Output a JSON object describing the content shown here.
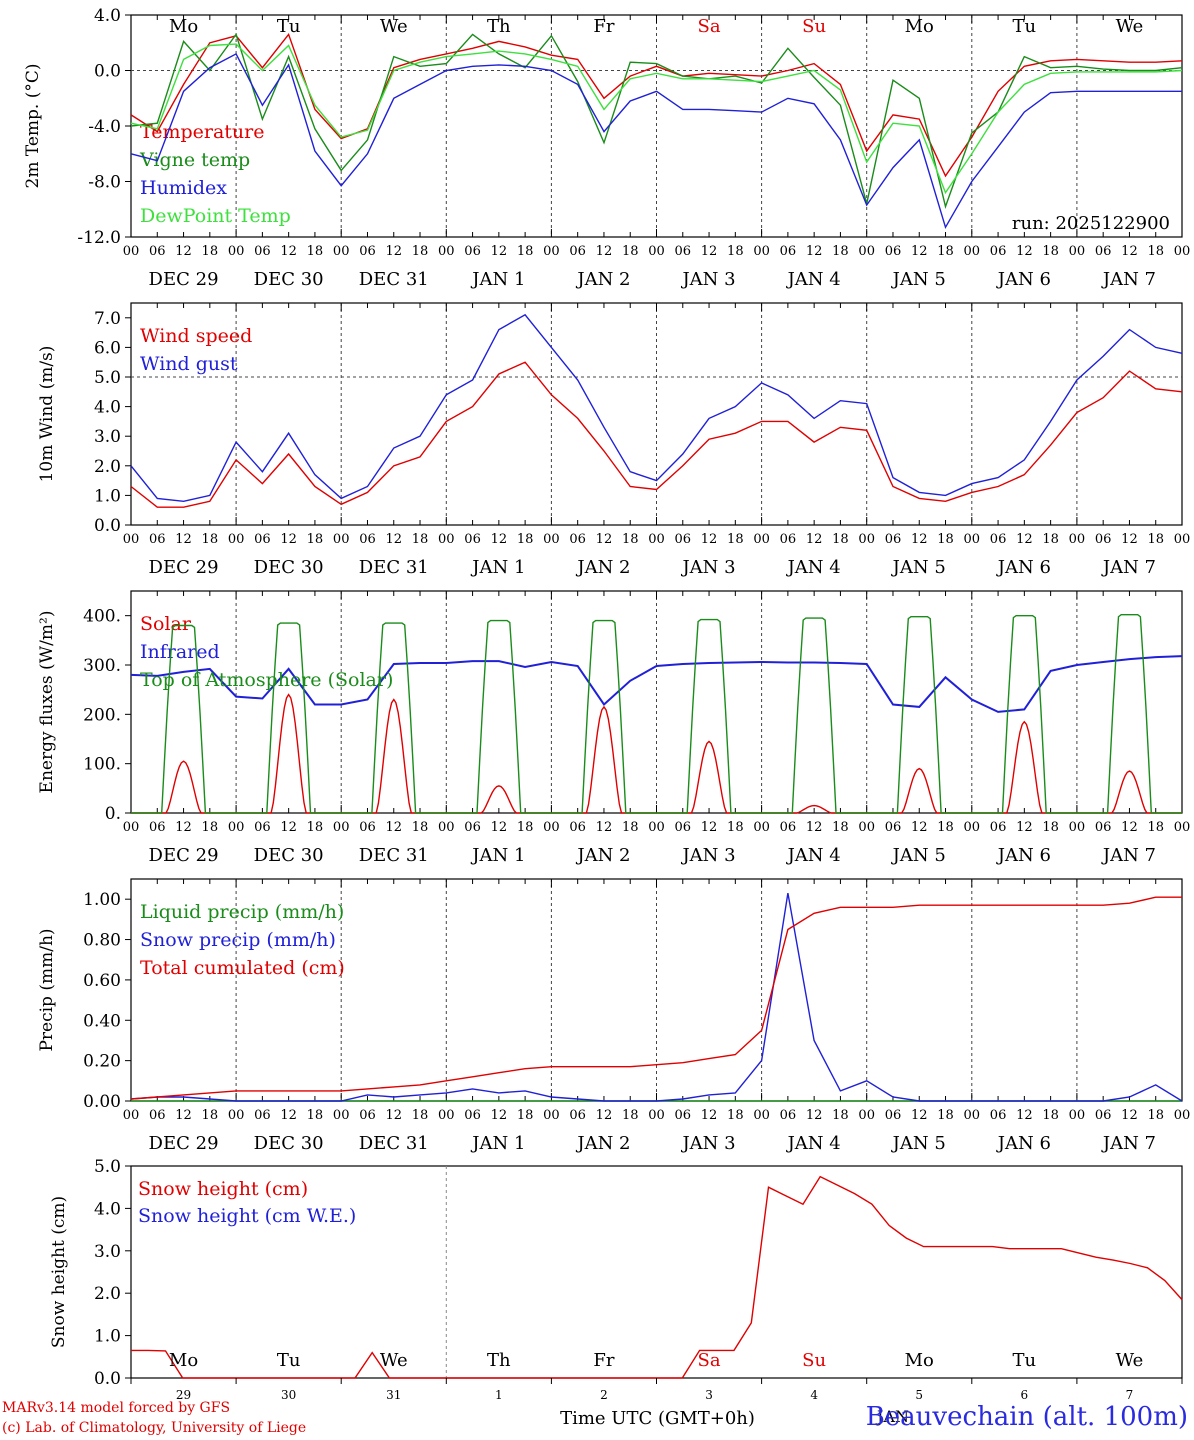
{
  "chart_data": [
    {
      "type": "line",
      "ylabel": "2m Temp. (°C)",
      "ylim": [
        -12,
        4
      ],
      "yticks": [
        "-12.0",
        "-8.0",
        "-4.0",
        "0.0",
        "4.0"
      ],
      "ref_line": 0,
      "run_label": "run: 2025122900",
      "day_labels": [
        "Mo",
        "Tu",
        "We",
        "Th",
        "Fr",
        "Sa",
        "Su",
        "Mo",
        "Tu",
        "We"
      ],
      "date_labels": [
        "DEC 29",
        "DEC 30",
        "DEC 31",
        "JAN  1",
        "JAN  2",
        "JAN  3",
        "JAN  4",
        "JAN  5",
        "JAN  6",
        "JAN  7"
      ],
      "x_hours": [
        0,
        6,
        12,
        18,
        24,
        30,
        36,
        42,
        48,
        54,
        60,
        66,
        72,
        78,
        84,
        90,
        96,
        102,
        108,
        114,
        120,
        126,
        132,
        138,
        144,
        150,
        156,
        162,
        168,
        174,
        180,
        186,
        192,
        198,
        204,
        210,
        216,
        222,
        228,
        234,
        240
      ],
      "series": [
        {
          "name": "Temperature",
          "color": "#e00000",
          "values": [
            -3.2,
            -4.4,
            -1.0,
            2.0,
            2.5,
            0.2,
            2.6,
            -2.8,
            -4.9,
            -4.2,
            0.2,
            0.8,
            1.2,
            1.6,
            2.1,
            1.7,
            1.1,
            0.8,
            -2.0,
            -0.4,
            0.3,
            -0.4,
            -0.2,
            -0.3,
            -0.4,
            0.0,
            0.5,
            -1.0,
            -5.8,
            -3.2,
            -3.5,
            -7.6,
            -4.8,
            -1.5,
            0.3,
            0.7,
            0.8,
            0.7,
            0.6,
            0.6,
            0.7
          ]
        },
        {
          "name": "Vigne temp",
          "color": "#1a8c1a",
          "values": [
            -4.0,
            -3.8,
            2.1,
            0.0,
            2.6,
            -3.5,
            1.0,
            -4.2,
            -7.2,
            -5.0,
            1.0,
            0.3,
            0.5,
            2.6,
            1.2,
            0.2,
            2.5,
            -0.8,
            -5.2,
            0.6,
            0.5,
            -0.4,
            -0.6,
            -0.4,
            -0.9,
            1.6,
            -0.5,
            -2.5,
            -9.6,
            -0.7,
            -2.0,
            -9.8,
            -4.5,
            -3.0,
            1.0,
            0.2,
            0.3,
            0.1,
            0.0,
            0.0,
            0.2
          ]
        },
        {
          "name": "Humidex",
          "color": "#2020d8",
          "values": [
            -6.0,
            -6.5,
            -1.5,
            0.2,
            1.2,
            -2.5,
            0.4,
            -5.8,
            -8.3,
            -6.0,
            -2.0,
            -1.0,
            0.0,
            0.3,
            0.4,
            0.3,
            0.0,
            -1.0,
            -4.4,
            -2.2,
            -1.5,
            -2.8,
            -2.8,
            -2.9,
            -3.0,
            -2.0,
            -2.4,
            -5.0,
            -9.7,
            -7.0,
            -5.0,
            -11.3,
            -8.0,
            -5.5,
            -3.0,
            -1.6,
            -1.5,
            -1.5,
            -1.5,
            -1.5,
            -1.5
          ]
        },
        {
          "name": "DewPoint Temp",
          "color": "#3de03d",
          "values": [
            -3.8,
            -4.2,
            0.8,
            1.8,
            1.9,
            0.0,
            1.8,
            -2.5,
            -4.8,
            -4.3,
            0.0,
            0.6,
            1.0,
            1.2,
            1.4,
            1.2,
            0.8,
            0.3,
            -2.8,
            -0.6,
            -0.2,
            -0.6,
            -0.6,
            -0.7,
            -0.8,
            -0.4,
            0.0,
            -1.4,
            -6.6,
            -3.8,
            -4.0,
            -8.8,
            -6.0,
            -3.0,
            -1.0,
            -0.2,
            -0.1,
            -0.1,
            -0.1,
            -0.1,
            0.0
          ]
        }
      ]
    },
    {
      "type": "line",
      "ylabel": "10m Wind (m/s)",
      "ylim": [
        0,
        7.5
      ],
      "yticks": [
        "0.0",
        "1.0",
        "2.0",
        "3.0",
        "4.0",
        "5.0",
        "6.0",
        "7.0"
      ],
      "ref_line": 5,
      "x_hours": [
        0,
        6,
        12,
        18,
        24,
        30,
        36,
        42,
        48,
        54,
        60,
        66,
        72,
        78,
        84,
        90,
        96,
        102,
        108,
        114,
        120,
        126,
        132,
        138,
        144,
        150,
        156,
        162,
        168,
        174,
        180,
        186,
        192,
        198,
        204,
        210,
        216,
        222,
        228,
        234,
        240
      ],
      "series": [
        {
          "name": "Wind speed",
          "color": "#e00000",
          "values": [
            1.3,
            0.6,
            0.6,
            0.8,
            2.2,
            1.4,
            2.4,
            1.3,
            0.7,
            1.1,
            2.0,
            2.3,
            3.5,
            4.0,
            5.1,
            5.5,
            4.4,
            3.6,
            2.5,
            1.3,
            1.2,
            2.0,
            2.9,
            3.1,
            3.5,
            3.5,
            2.8,
            3.3,
            3.2,
            1.3,
            0.9,
            0.8,
            1.1,
            1.3,
            1.7,
            2.7,
            3.8,
            4.3,
            5.2,
            4.6,
            4.5
          ]
        },
        {
          "name": "Wind gust",
          "color": "#2020d8",
          "values": [
            2.0,
            0.9,
            0.8,
            1.0,
            2.8,
            1.8,
            3.1,
            1.7,
            0.9,
            1.3,
            2.6,
            3.0,
            4.4,
            4.9,
            6.6,
            7.1,
            6.0,
            4.9,
            3.3,
            1.8,
            1.5,
            2.4,
            3.6,
            4.0,
            4.8,
            4.4,
            3.6,
            4.2,
            4.1,
            1.6,
            1.1,
            1.0,
            1.4,
            1.6,
            2.2,
            3.5,
            4.9,
            5.7,
            6.6,
            6.0,
            5.8
          ]
        }
      ]
    },
    {
      "type": "line",
      "ylabel": "Energy fluxes (W/m²)",
      "ylim": [
        0,
        450
      ],
      "yticks": [
        "0.",
        "100.",
        "200.",
        "300.",
        "400."
      ],
      "x_hours": [
        0,
        6,
        12,
        18,
        24,
        30,
        36,
        42,
        48,
        54,
        60,
        66,
        72,
        78,
        84,
        90,
        96,
        102,
        108,
        114,
        120,
        126,
        132,
        138,
        144,
        150,
        156,
        162,
        168,
        174,
        180,
        186,
        192,
        198,
        204,
        210,
        216,
        222,
        228,
        234,
        240
      ],
      "series": [
        {
          "name": "Solar",
          "color": "#e00000",
          "peaks": [
            105,
            240,
            230,
            55,
            215,
            145,
            15,
            90,
            185,
            85
          ]
        },
        {
          "name": "Infrared",
          "color": "#2020d8",
          "values": [
            280,
            278,
            286,
            292,
            236,
            232,
            292,
            220,
            220,
            230,
            302,
            304,
            304,
            308,
            308,
            296,
            306,
            298,
            220,
            268,
            298,
            302,
            304,
            305,
            306,
            305,
            305,
            304,
            302,
            220,
            215,
            275,
            230,
            205,
            210,
            288,
            300,
            306,
            312,
            316,
            318
          ]
        },
        {
          "name": "Top of Atmosphere (Solar)",
          "color": "#1a8c1a",
          "peaks": [
            380,
            385,
            385,
            390,
            390,
            392,
            395,
            398,
            400,
            402
          ]
        }
      ]
    },
    {
      "type": "line",
      "ylabel": "Precip (mm/h)",
      "ylim": [
        0,
        1.1
      ],
      "yticks": [
        "0.00",
        "0.20",
        "0.40",
        "0.60",
        "0.80",
        "1.00"
      ],
      "x_hours": [
        0,
        6,
        12,
        18,
        24,
        30,
        36,
        42,
        48,
        54,
        60,
        66,
        72,
        78,
        84,
        90,
        96,
        102,
        108,
        114,
        120,
        126,
        132,
        138,
        144,
        150,
        156,
        162,
        168,
        174,
        180,
        186,
        192,
        198,
        204,
        210,
        216,
        222,
        228,
        234,
        240
      ],
      "series": [
        {
          "name": "Liquid precip (mm/h)",
          "color": "#1a8c1a",
          "values": [
            0,
            0,
            0,
            0,
            0,
            0,
            0,
            0,
            0,
            0,
            0,
            0,
            0,
            0,
            0,
            0,
            0,
            0,
            0,
            0,
            0,
            0,
            0,
            0,
            0,
            0,
            0,
            0,
            0,
            0,
            0,
            0,
            0,
            0,
            0,
            0,
            0,
            0,
            0,
            0,
            0
          ]
        },
        {
          "name": "Snow precip (mm/h)",
          "color": "#2020d8",
          "values": [
            0.01,
            0.02,
            0.02,
            0.01,
            0.0,
            0.0,
            0.0,
            0.0,
            0.0,
            0.03,
            0.02,
            0.03,
            0.04,
            0.06,
            0.04,
            0.05,
            0.02,
            0.01,
            0.0,
            0.0,
            0.0,
            0.01,
            0.03,
            0.04,
            0.2,
            1.03,
            0.3,
            0.05,
            0.1,
            0.02,
            0.0,
            0.0,
            0.0,
            0.0,
            0.0,
            0.0,
            0.0,
            0.0,
            0.02,
            0.08,
            0.0
          ]
        },
        {
          "name": "Total cumulated (cm)",
          "color": "#e00000",
          "values": [
            0.01,
            0.02,
            0.03,
            0.04,
            0.05,
            0.05,
            0.05,
            0.05,
            0.05,
            0.06,
            0.07,
            0.08,
            0.1,
            0.12,
            0.14,
            0.16,
            0.17,
            0.17,
            0.17,
            0.17,
            0.18,
            0.19,
            0.21,
            0.23,
            0.35,
            0.85,
            0.93,
            0.96,
            0.96,
            0.96,
            0.97,
            0.97,
            0.97,
            0.97,
            0.97,
            0.97,
            0.97,
            0.97,
            0.98,
            1.01,
            1.01
          ]
        }
      ]
    },
    {
      "type": "line",
      "ylabel": "Snow height (cm)",
      "ylim": [
        0,
        5
      ],
      "yticks": [
        "0.0",
        "1.0",
        "2.0",
        "3.0",
        "4.0",
        "5.0"
      ],
      "day_labels": [
        "Mo",
        "Tu",
        "We",
        "Th",
        "Fr",
        "Sa",
        "Su",
        "Mo",
        "Tu",
        "We"
      ],
      "date_numbers": [
        "29",
        "30",
        "31",
        "1",
        "2",
        "3",
        "4",
        "5",
        "6",
        "7"
      ],
      "month_label": "JAN",
      "xlabel": "Time UTC (GMT+0h)",
      "series": [
        {
          "name": "Snow height (cm)",
          "color": "#e00000",
          "values": [
            0.65,
            0.65,
            0.64,
            0.0,
            0.0,
            0.0,
            0.0,
            0.0,
            0.0,
            0.0,
            0.0,
            0.0,
            0.0,
            0.0,
            0.6,
            0.0,
            0.0,
            0.0,
            0.0,
            0.0,
            0.0,
            0.0,
            0.0,
            0.0,
            0.0,
            0.0,
            0.0,
            0.0,
            0.0,
            0.0,
            0.0,
            0.0,
            0.0,
            0.65,
            0.65,
            0.65,
            1.3,
            4.5,
            4.3,
            4.1,
            4.75,
            4.55,
            4.35,
            4.1,
            3.6,
            3.3,
            3.1,
            3.1,
            3.1,
            3.1,
            3.1,
            3.05,
            3.05,
            3.05,
            3.05,
            2.95,
            2.85,
            2.78,
            2.7,
            2.6,
            2.3,
            1.85
          ]
        },
        {
          "name": "Snow height (cm W.E.)",
          "color": "#2020d8",
          "values": []
        }
      ]
    }
  ],
  "footer": {
    "credit_line1": "MARv3.14 model forced by GFS",
    "credit_line2": "(c) Lab. of Climatology, University of Liege",
    "station": "Beauvechain (alt. 100m)"
  }
}
